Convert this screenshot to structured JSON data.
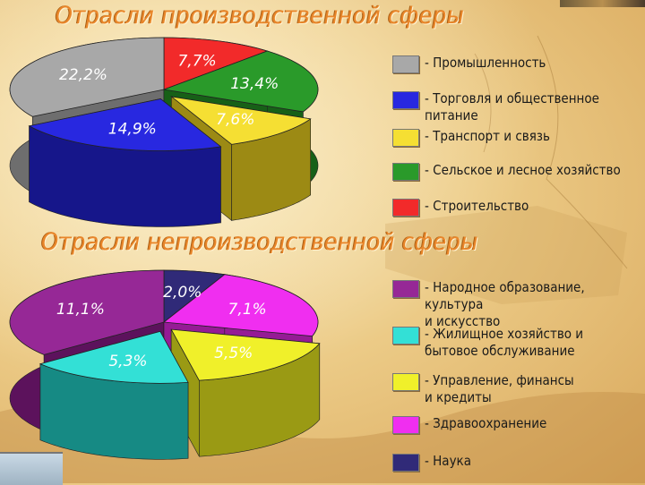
{
  "titles": {
    "production": "Отрасли производственной сферы",
    "nonproduction": "Отрасли непроизводственной сферы"
  },
  "chart_data": [
    {
      "type": "pie",
      "title": "Отрасли производственной сферы",
      "slices": [
        {
          "label": "Промышленность",
          "value": 22.2,
          "display": "22,2%",
          "color": "#a8a8a8",
          "side": "#6e6e6e",
          "exploded": false
        },
        {
          "label": "Строительство",
          "value": 7.7,
          "display": "7,7%",
          "color": "#f22a2a",
          "side": "#9a1010",
          "exploded": false
        },
        {
          "label": "Сельское и лесное хозяйство",
          "value": 13.4,
          "display": "13,4%",
          "color": "#2a9a2a",
          "side": "#176017",
          "exploded": false
        },
        {
          "label": "Транспорт и связь",
          "value": 7.6,
          "display": "7,6%",
          "color": "#f5df33",
          "side": "#9c8a14",
          "exploded": true
        },
        {
          "label": "Торговля и общественное питание",
          "value": 14.9,
          "display": "14,9%",
          "color": "#2828e0",
          "side": "#16168a",
          "exploded": true
        }
      ],
      "legend_order": [
        "Промышленность",
        "Торговля и общественное питание",
        "Транспорт и связь",
        "Сельское и лесное хозяйство",
        "Строительство"
      ],
      "legend": "right"
    },
    {
      "type": "pie",
      "title": "Отрасли непроизводственной сферы",
      "slices": [
        {
          "label": "Народное образование, культура и искусство",
          "value": 11.1,
          "display": "11,1%",
          "color": "#962896",
          "side": "#5c125c",
          "exploded": false
        },
        {
          "label": "Наука",
          "value": 2.0,
          "display": "2,0%",
          "color": "#302a78",
          "side": "#1a1648",
          "exploded": false
        },
        {
          "label": "Здравоохранение",
          "value": 7.1,
          "display": "7,1%",
          "color": "#f02ef0",
          "side": "#951b95",
          "exploded": false
        },
        {
          "label": "Управление, финансы и кредиты",
          "value": 5.5,
          "display": "5,5%",
          "color": "#f0f02a",
          "side": "#9a9a14",
          "exploded": true
        },
        {
          "label": "Жилищное хозяйство и бытовое обслуживание",
          "value": 5.3,
          "display": "5,3%",
          "color": "#33e0d6",
          "side": "#168a84",
          "exploded": true
        }
      ],
      "legend_order": [
        "Народное образование, культура и искусство",
        "Жилищное хозяйство и бытовое обслуживание",
        "Управление, финансы и кредиты",
        "Здравоохранение",
        "Наука"
      ],
      "legend": "right"
    }
  ],
  "legend": {
    "production": [
      {
        "text": "- Промышленность",
        "color": "#a8a8a8"
      },
      {
        "text": "- Торговля и общественное питание",
        "color": "#2828e0"
      },
      {
        "text": "- Транспорт и связь",
        "color": "#f5df33"
      },
      {
        "text": "- Сельское и лесное хозяйство",
        "color": "#2a9a2a"
      },
      {
        "text": "- Строительство",
        "color": "#f22a2a"
      }
    ],
    "nonproduction": [
      {
        "text": "- Народное образование, культура\nи искусство",
        "color": "#962896"
      },
      {
        "text": "- Жилищное хозяйство и\nбытовое обслуживание",
        "color": "#33e0d6"
      },
      {
        "text": "- Управление, финансы\nи кредиты",
        "color": "#f0f02a"
      },
      {
        "text": "- Здравоохранение",
        "color": "#f02ef0"
      },
      {
        "text": "- Наука",
        "color": "#302a78"
      }
    ]
  }
}
